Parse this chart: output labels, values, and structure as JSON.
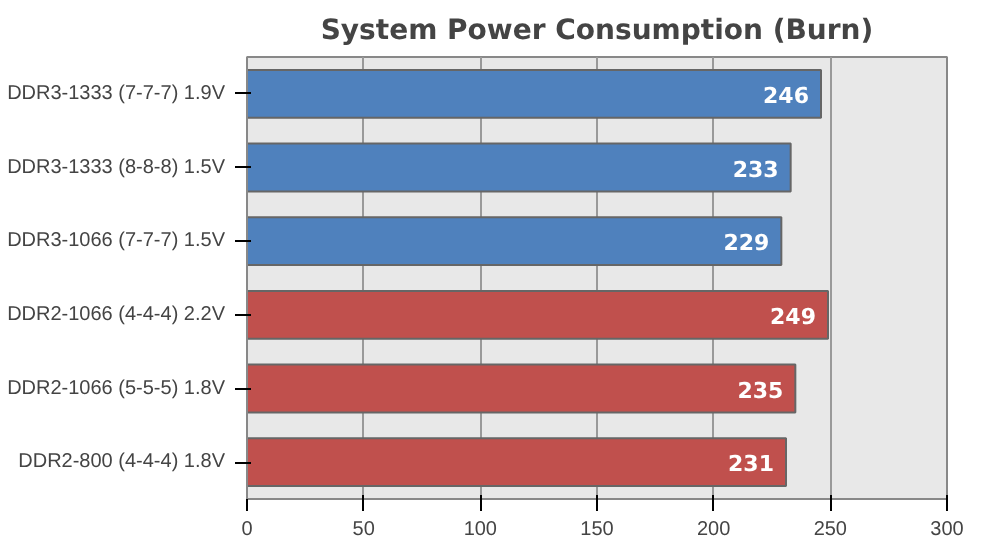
{
  "chart_data": {
    "type": "bar",
    "orientation": "horizontal",
    "title": "System Power Consumption (Burn)",
    "categories": [
      "DDR3-1333 (7-7-7) 1.9V",
      "DDR3-1333 (8-8-8) 1.5V",
      "DDR3-1066 (7-7-7) 1.5V",
      "DDR2-1066 (4-4-4) 2.2V",
      "DDR2-1066 (5-5-5) 1.8V",
      "DDR2-800 (4-4-4) 1.8V"
    ],
    "values": [
      246,
      233,
      229,
      249,
      235,
      231
    ],
    "colors": [
      "#4f81bd",
      "#4f81bd",
      "#4f81bd",
      "#c0504d",
      "#c0504d",
      "#c0504d"
    ],
    "data_labels": true,
    "xlim": [
      0,
      300
    ],
    "xticks": [
      0,
      50,
      100,
      150,
      200,
      250,
      300
    ],
    "grid": "x"
  }
}
